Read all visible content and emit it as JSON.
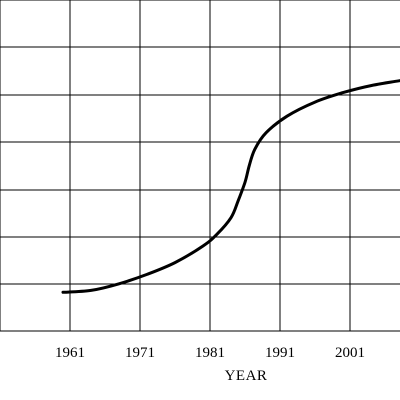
{
  "chart_data": {
    "type": "line",
    "title": "",
    "xlabel": "YEAR",
    "ylabel": "",
    "xticks": [
      1961,
      1971,
      1981,
      1991,
      2001
    ],
    "grid": true,
    "legend": "none",
    "series": [
      {
        "values_note": "",
        "points": [
          [
            1960,
            0.82
          ],
          [
            1964,
            0.86
          ],
          [
            1968,
            1.0
          ],
          [
            1972,
            1.2
          ],
          [
            1976,
            1.45
          ],
          [
            1980,
            1.8
          ],
          [
            1982,
            2.05
          ],
          [
            1984,
            2.4
          ],
          [
            1985,
            2.75
          ],
          [
            1986,
            3.15
          ],
          [
            1986.6,
            3.5
          ],
          [
            1987.4,
            3.85
          ],
          [
            1989,
            4.2
          ],
          [
            1992,
            4.55
          ],
          [
            1996,
            4.85
          ],
          [
            2000,
            5.05
          ],
          [
            2004,
            5.2
          ],
          [
            2008,
            5.3
          ],
          [
            2011,
            5.37
          ]
        ]
      }
    ]
  },
  "colors": {
    "line": "#000000",
    "grid": "#000000",
    "background": "#ffffff"
  }
}
